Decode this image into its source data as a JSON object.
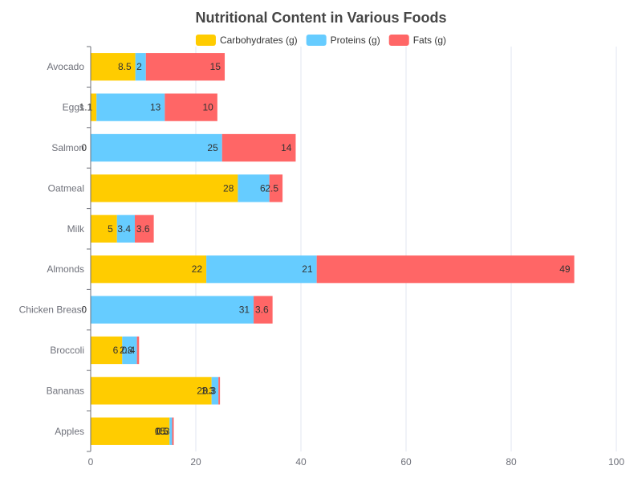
{
  "chart_data": {
    "type": "bar",
    "orientation": "horizontal",
    "stacked": true,
    "title": "Nutritional Content in Various Foods",
    "xlabel": "",
    "ylabel": "",
    "xlim": [
      0,
      100
    ],
    "x_ticks": [
      0,
      20,
      40,
      60,
      80,
      100
    ],
    "grid": true,
    "legend_position": "top",
    "categories": [
      "Avocado",
      "Eggs",
      "Salmon",
      "Oatmeal",
      "Milk",
      "Almonds",
      "Chicken Breast",
      "Broccoli",
      "Bananas",
      "Apples"
    ],
    "series": [
      {
        "name": "Carbohydrates (g)",
        "color": "#ffcc00",
        "values": [
          8.5,
          1.1,
          0,
          28,
          5,
          22,
          0,
          6,
          23,
          15
        ]
      },
      {
        "name": "Proteins (g)",
        "color": "#66ccff",
        "values": [
          2,
          13,
          25,
          6,
          3.4,
          21,
          31,
          2.8,
          1.3,
          0.5
        ]
      },
      {
        "name": "Fats (g)",
        "color": "#ff6666",
        "values": [
          15,
          10,
          14,
          2.5,
          3.6,
          49,
          3.6,
          0.4,
          0.3,
          0.3
        ]
      }
    ]
  }
}
